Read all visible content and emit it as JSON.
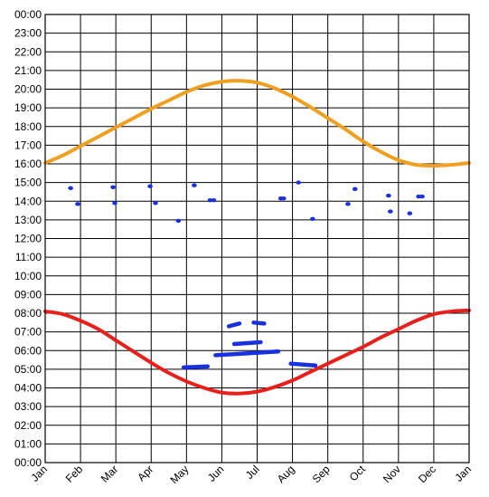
{
  "chart_data": {
    "type": "line",
    "title": "",
    "xlabel": "",
    "ylabel": "",
    "x_ticks": [
      "Jan",
      "Feb",
      "Mar",
      "Apr",
      "May",
      "Jun",
      "Jul",
      "Aug",
      "Sep",
      "Oct",
      "Nov",
      "Dec",
      "Jan"
    ],
    "y_ticks": [
      "00:00",
      "01:00",
      "02:00",
      "03:00",
      "04:00",
      "05:00",
      "06:00",
      "07:00",
      "08:00",
      "09:00",
      "10:00",
      "11:00",
      "12:00",
      "13:00",
      "14:00",
      "15:00",
      "16:00",
      "17:00",
      "18:00",
      "19:00",
      "20:00",
      "21:00",
      "22:00",
      "23:00",
      "00:00"
    ],
    "xlim": [
      0,
      12
    ],
    "ylim": [
      0,
      24
    ],
    "grid": true,
    "legend": false,
    "series": [
      {
        "color": "#f0a020",
        "style": "curve",
        "x": [
          0,
          0.5,
          1,
          1.5,
          2,
          2.5,
          3,
          3.5,
          4,
          4.5,
          5,
          5.5,
          6,
          6.5,
          7,
          7.5,
          8,
          8.5,
          9,
          9.5,
          10,
          10.5,
          11,
          11.5,
          12
        ],
        "y": [
          16.05,
          16.45,
          16.95,
          17.45,
          17.95,
          18.45,
          18.95,
          19.4,
          19.85,
          20.2,
          20.4,
          20.45,
          20.35,
          20.05,
          19.6,
          19.05,
          18.45,
          17.85,
          17.2,
          16.65,
          16.2,
          15.95,
          15.9,
          15.95,
          16.05
        ]
      },
      {
        "color": "#e8201c",
        "style": "curve",
        "x": [
          0,
          0.5,
          1,
          1.5,
          2,
          2.5,
          3,
          3.5,
          4,
          4.5,
          5,
          5.5,
          6,
          6.5,
          7,
          7.5,
          8,
          8.5,
          9,
          9.5,
          10,
          10.5,
          11,
          11.5,
          12
        ],
        "y": [
          8.1,
          7.95,
          7.6,
          7.15,
          6.55,
          5.95,
          5.35,
          4.8,
          4.35,
          4.0,
          3.75,
          3.7,
          3.8,
          4.05,
          4.4,
          4.85,
          5.3,
          5.75,
          6.2,
          6.7,
          7.15,
          7.6,
          7.95,
          8.1,
          8.15
        ]
      },
      {
        "color": "#1830e0",
        "style": "points",
        "x": [
          0.72,
          0.92,
          1.92,
          1.97,
          2.97,
          3.12,
          3.77,
          4.22,
          4.67,
          4.77,
          6.67,
          6.75,
          7.17,
          7.57,
          8.57,
          8.77,
          9.72,
          9.77,
          10.32,
          10.57,
          10.67
        ],
        "y": [
          14.7,
          13.85,
          14.75,
          13.9,
          14.8,
          13.9,
          12.95,
          14.85,
          14.05,
          14.05,
          14.15,
          14.15,
          15.0,
          13.05,
          13.85,
          14.65,
          14.3,
          13.45,
          13.35,
          14.25,
          14.25
        ]
      },
      {
        "color": "#1830e0",
        "style": "segments",
        "segments": [
          {
            "x": [
              3.92,
              4.6
            ],
            "y": [
              5.1,
              5.15
            ]
          },
          {
            "x": [
              4.82,
              6.6
            ],
            "y": [
              5.75,
              5.95
            ]
          },
          {
            "x": [
              5.35,
              6.1
            ],
            "y": [
              6.35,
              6.45
            ]
          },
          {
            "x": [
              5.2,
              5.5
            ],
            "y": [
              7.3,
              7.45
            ]
          },
          {
            "x": [
              5.9,
              6.2
            ],
            "y": [
              7.5,
              7.45
            ]
          },
          {
            "x": [
              6.95,
              7.65
            ],
            "y": [
              5.3,
              5.2
            ]
          }
        ]
      }
    ]
  }
}
